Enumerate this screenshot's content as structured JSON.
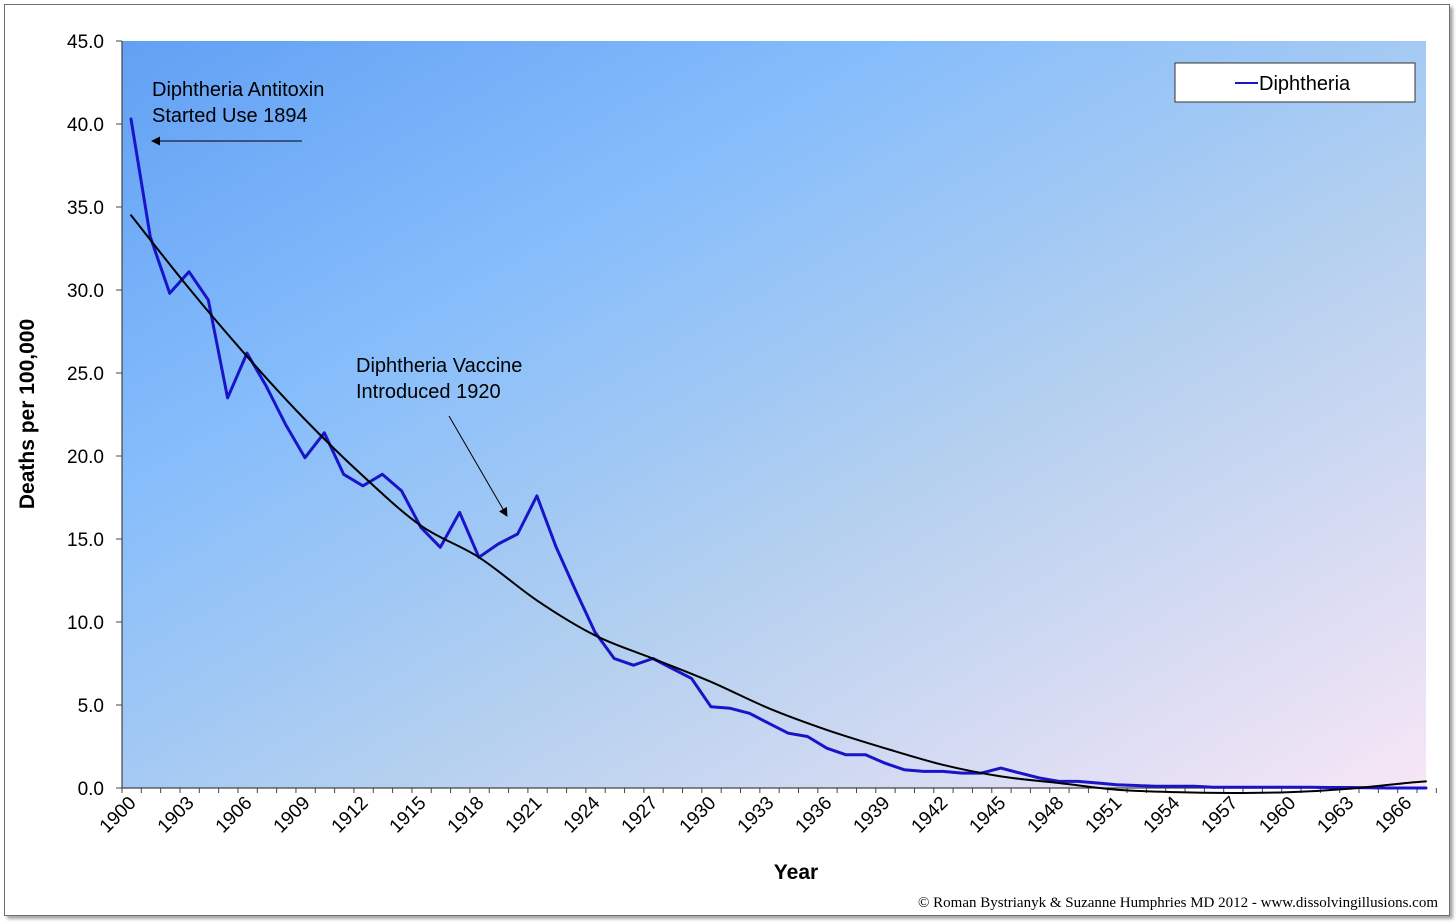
{
  "chart_data": {
    "type": "line",
    "ylabel": "Deaths per 100,000",
    "xlabel": "Year",
    "ylim": [
      0,
      45
    ],
    "yticks": [
      "0.0",
      "5.0",
      "10.0",
      "15.0",
      "20.0",
      "25.0",
      "30.0",
      "35.0",
      "40.0",
      "45.0"
    ],
    "xlim": [
      1900,
      1968
    ],
    "xticks": [
      "1900",
      "1903",
      "1906",
      "1909",
      "1912",
      "1915",
      "1918",
      "1921",
      "1924",
      "1927",
      "1930",
      "1933",
      "1936",
      "1939",
      "1942",
      "1945",
      "1948",
      "1951",
      "1954",
      "1957",
      "1960",
      "1963",
      "1966"
    ],
    "legend": {
      "position": "top-right",
      "entries": [
        "Diphtheria"
      ]
    },
    "series": [
      {
        "name": "Diphtheria",
        "color": "#1a14c8",
        "x": [
          1900,
          1901,
          1902,
          1903,
          1904,
          1905,
          1906,
          1907,
          1908,
          1909,
          1910,
          1911,
          1912,
          1913,
          1914,
          1915,
          1916,
          1917,
          1918,
          1919,
          1920,
          1921,
          1922,
          1923,
          1924,
          1925,
          1926,
          1927,
          1928,
          1929,
          1930,
          1931,
          1932,
          1933,
          1934,
          1935,
          1936,
          1937,
          1938,
          1939,
          1940,
          1941,
          1942,
          1943,
          1944,
          1945,
          1946,
          1947,
          1948,
          1949,
          1950,
          1951,
          1952,
          1953,
          1954,
          1955,
          1956,
          1957,
          1958,
          1959,
          1960,
          1961,
          1962,
          1963,
          1964,
          1965,
          1966,
          1967
        ],
        "values": [
          40.3,
          33.2,
          29.8,
          31.1,
          29.4,
          23.5,
          26.2,
          24.2,
          21.9,
          19.9,
          21.4,
          18.9,
          18.2,
          18.9,
          17.9,
          15.7,
          14.5,
          16.6,
          13.9,
          14.7,
          15.3,
          17.6,
          14.5,
          11.9,
          9.4,
          7.8,
          7.4,
          7.8,
          7.2,
          6.6,
          4.9,
          4.8,
          4.5,
          3.9,
          3.3,
          3.1,
          2.4,
          2.0,
          2.0,
          1.5,
          1.1,
          1.0,
          1.0,
          0.9,
          0.9,
          1.2,
          0.9,
          0.6,
          0.4,
          0.4,
          0.3,
          0.2,
          0.15,
          0.1,
          0.1,
          0.1,
          0.05,
          0.05,
          0.05,
          0.05,
          0.05,
          0.05,
          0.03,
          0.03,
          0.02,
          0.0,
          0.0,
          0.0
        ]
      },
      {
        "type": "trendline",
        "color": "#000000",
        "x": [
          1900,
          1903,
          1906,
          1909,
          1912,
          1915,
          1918,
          1921,
          1924,
          1927,
          1930,
          1933,
          1936,
          1939,
          1942,
          1945,
          1948,
          1951,
          1954,
          1957,
          1960,
          1963,
          1966,
          1967
        ],
        "values": [
          34.5,
          30.1,
          26.0,
          22.2,
          18.8,
          15.8,
          13.9,
          11.3,
          9.2,
          7.8,
          6.4,
          4.8,
          3.5,
          2.4,
          1.4,
          0.7,
          0.3,
          -0.1,
          -0.25,
          -0.3,
          -0.25,
          -0.05,
          0.3,
          0.4
        ]
      }
    ],
    "annotations": [
      {
        "lines": [
          "Diphtheria Antitoxin",
          "Started Use 1894"
        ],
        "arrow_to": {
          "x": 1900.3,
          "y": 39.1
        }
      },
      {
        "lines": [
          "Diphtheria Vaccine",
          "Introduced 1920"
        ],
        "arrow_to": {
          "x": 1919.8,
          "y": 16.1
        }
      }
    ]
  },
  "credit": "© Roman Bystrianyk & Suzanne Humphries MD 2012 - www.dissolvingillusions.com"
}
